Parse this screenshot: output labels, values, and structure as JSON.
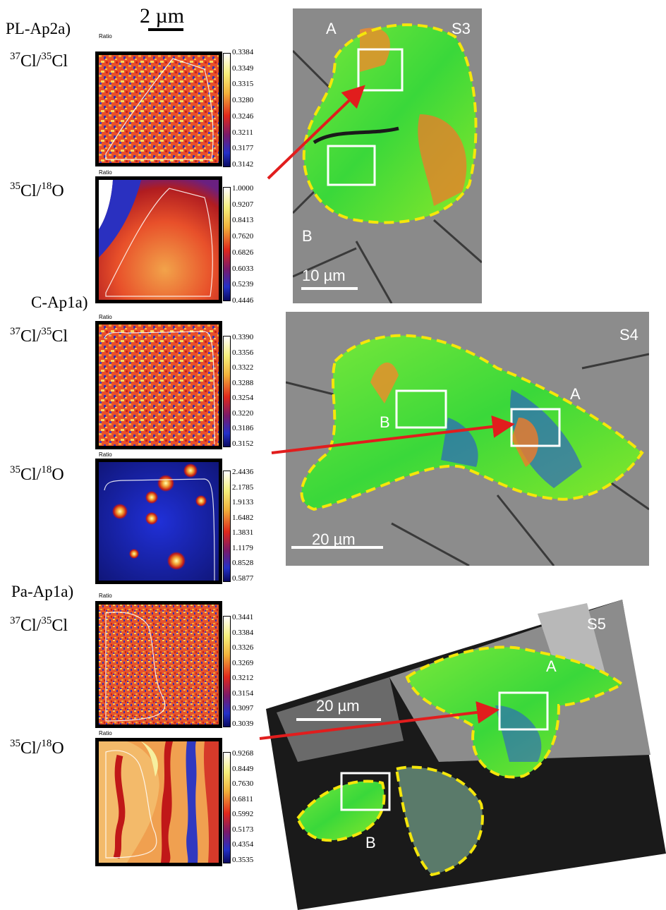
{
  "scale_bar_top": "2 µm",
  "samples": [
    {
      "label": "PL-Ap2a)",
      "sem_label": "S3",
      "sem_region_a": "A",
      "sem_region_b": "B",
      "sem_scale": "10 µm",
      "rows": [
        {
          "ratio_tag": "Ratio",
          "ticks": [
            "0.3384",
            "0.3349",
            "0.3315",
            "0.3280",
            "0.3246",
            "0.3211",
            "0.3177",
            "0.3142"
          ]
        },
        {
          "ratio_tag": "Ratio",
          "ticks": [
            "1.0000",
            "0.9207",
            "0.8413",
            "0.7620",
            "0.6826",
            "0.6033",
            "0.5239",
            "0.4446"
          ]
        }
      ]
    },
    {
      "label": "C-Ap1a)",
      "sem_label": "S4",
      "sem_region_a": "A",
      "sem_region_b": "B",
      "sem_scale": "20 µm",
      "rows": [
        {
          "ratio_tag": "Ratio",
          "ticks": [
            "0.3390",
            "0.3356",
            "0.3322",
            "0.3288",
            "0.3254",
            "0.3220",
            "0.3186",
            "0.3152"
          ]
        },
        {
          "ratio_tag": "Ratio",
          "ticks": [
            "2.4436",
            "2.1785",
            "1.9133",
            "1.6482",
            "1.3831",
            "1.1179",
            "0.8528",
            "0.5877"
          ]
        }
      ]
    },
    {
      "label": "Pa-Ap1a)",
      "sem_label": "S5",
      "sem_region_a": "A",
      "sem_region_b": "B",
      "sem_scale": "20 µm",
      "rows": [
        {
          "ratio_tag": "Ratio",
          "ticks": [
            "0.3441",
            "0.3384",
            "0.3326",
            "0.3269",
            "0.3212",
            "0.3154",
            "0.3097",
            "0.3039"
          ]
        },
        {
          "ratio_tag": "Ratio",
          "ticks": [
            "0.9268",
            "0.8449",
            "0.7630",
            "0.6811",
            "0.5992",
            "0.5173",
            "0.4354",
            "0.3535"
          ]
        }
      ]
    }
  ],
  "ratio_labels": {
    "cl_isotope": {
      "sup1": "37",
      "el1": "Cl/",
      "sup2": "35",
      "el2": "Cl"
    },
    "cl_oxygen": {
      "sup1": "35",
      "el1": "Cl/",
      "sup2": "18",
      "el2": "O"
    }
  },
  "colors": {
    "arrow": "#e11d1d",
    "outline": "#f5e60a",
    "box": "#ffffff"
  }
}
